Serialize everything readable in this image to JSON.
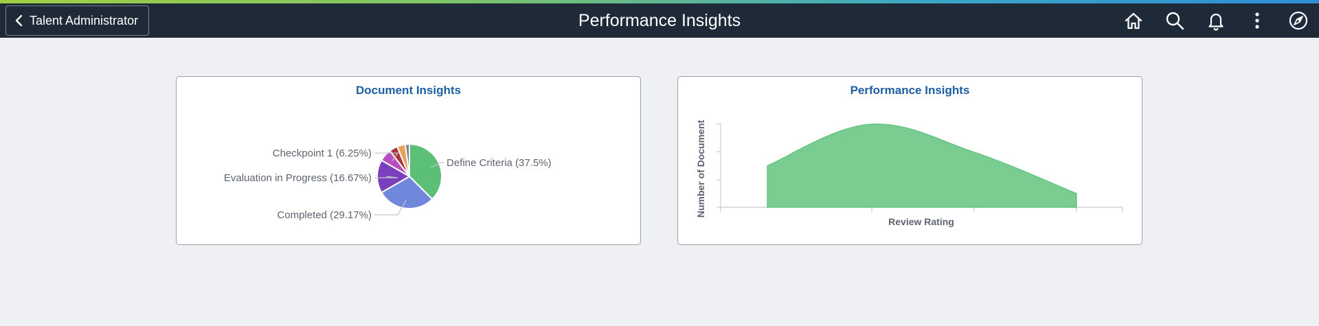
{
  "header": {
    "back_label": "Talent Administrator",
    "title": "Performance Insights",
    "icons": [
      "home-icon",
      "search-icon",
      "bell-icon",
      "more-icon",
      "compass-icon"
    ]
  },
  "document_tile": {
    "title": "Document Insights",
    "chart_data": {
      "type": "pie",
      "slices": [
        {
          "label": "Define Criteria (37.5%)",
          "value": 37.5,
          "color": "#5cbf77"
        },
        {
          "label": "Completed (29.17%)",
          "value": 29.17,
          "color": "#6f88db"
        },
        {
          "label": "Evaluation in Progress (16.67%)",
          "value": 16.67,
          "color": "#7b3fbe"
        },
        {
          "label": "Checkpoint 1 (6.25%)",
          "value": 6.25,
          "color": "#b94fbf"
        },
        {
          "label": "",
          "value": 4.17,
          "color": "#a8383e"
        },
        {
          "label": "",
          "value": 4.17,
          "color": "#e6a25a"
        },
        {
          "label": "",
          "value": 2.07,
          "color": "#7a7f86"
        }
      ]
    }
  },
  "performance_tile": {
    "title": "Performance Insights",
    "chart_data": {
      "type": "area",
      "xlabel": "Review Rating",
      "ylabel": "Number of Document",
      "color": "#7acd91",
      "stroke": "#5cbf77",
      "x": [
        0,
        1,
        2,
        3
      ],
      "values": [
        1.5,
        3.0,
        2.0,
        0.5
      ],
      "ylim": [
        0,
        3
      ],
      "grid": false
    }
  }
}
